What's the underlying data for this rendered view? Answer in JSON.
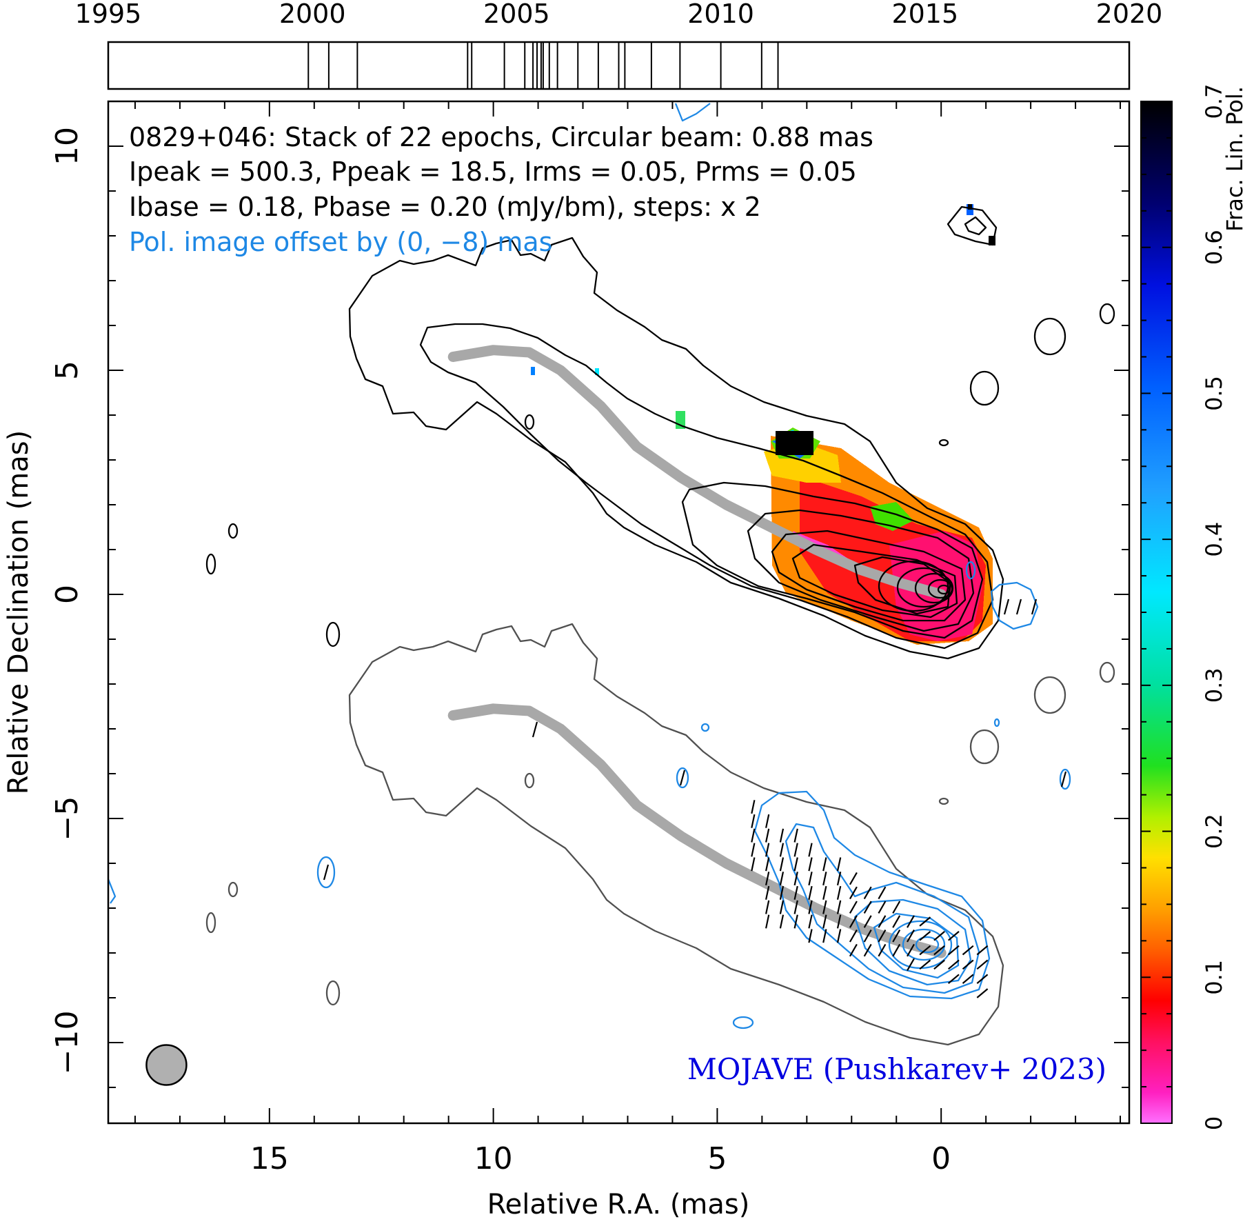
{
  "chart_data": {
    "type": "contour",
    "source": "0829+046",
    "header_lines": [
      "0829+046: Stack of 22 epochs, Circular beam: 0.88 mas",
      "Ipeak = 500.3, Ppeak = 18.5, Irms = 0.05, Prms = 0.05",
      "Ibase = 0.18, Pbase = 0.20 (mJy/bm), steps: x 2"
    ],
    "offset_note": "Pol. image offset by (0, −8) mas",
    "credit": "MOJAVE (Pushkarev+ 2023)",
    "xlabel": "Relative R.A. (mas)",
    "ylabel": "Relative Declination (mas)",
    "xlim": [
      18.6,
      -4.2
    ],
    "ylim": [
      -11.8,
      11.0
    ],
    "xticks": [
      15,
      10,
      5,
      0
    ],
    "yticks": [
      10,
      5,
      0,
      -5,
      -10
    ],
    "x_tick_labels": [
      "15",
      "10",
      "5",
      "0"
    ],
    "y_tick_labels": [
      "10",
      "5",
      "0",
      "−5",
      "−10"
    ],
    "beam": {
      "ra": 17.3,
      "dec": -10.5,
      "diameter_mas": 0.88
    },
    "ridge_line": {
      "ra": [
        10.9,
        10.0,
        9.2,
        8.5,
        7.6,
        6.8,
        5.8,
        4.8,
        3.8,
        2.8,
        1.8,
        0.9,
        0.0
      ],
      "dec": [
        5.3,
        5.45,
        5.4,
        5.0,
        4.2,
        3.3,
        2.6,
        2.0,
        1.5,
        1.0,
        0.55,
        0.25,
        0.0
      ]
    },
    "epochs": {
      "axis_min": 1995,
      "axis_max": 2020,
      "axis_ticks": [
        1995,
        2000,
        2005,
        2010,
        2015,
        2020
      ],
      "axis_tick_labels": [
        "1995",
        "2000",
        "2005",
        "2010",
        "2015",
        "2020"
      ],
      "dates": [
        1999.9,
        2000.4,
        2001.1,
        2003.8,
        2003.9,
        2004.7,
        2005.2,
        2005.4,
        2005.5,
        2005.6,
        2005.65,
        2005.8,
        2006.0,
        2006.5,
        2007.0,
        2007.5,
        2007.65,
        2008.3,
        2009.0,
        2010.0,
        2011.0,
        2011.4
      ]
    },
    "colorbar": {
      "label": "Frac. Lin. Pol.",
      "min": 0.0,
      "max": 0.7,
      "ticks": [
        0,
        0.1,
        0.2,
        0.3,
        0.4,
        0.5,
        0.6,
        0.7
      ],
      "tick_labels": [
        "0",
        "0.1",
        "0.2",
        "0.3",
        "0.4",
        "0.5",
        "0.6",
        "0.7"
      ],
      "colormap": "magenta-red-orange-yellow-green-cyan-blue-black"
    }
  }
}
